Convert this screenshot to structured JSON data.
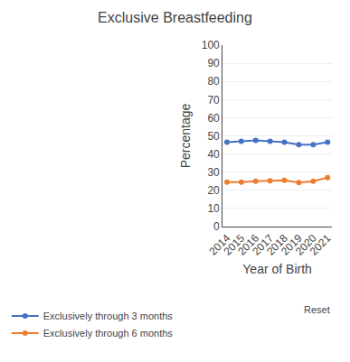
{
  "chart_data": {
    "type": "line",
    "title": "Exclusive Breastfeeding",
    "xlabel": "Year of Birth",
    "ylabel": "Percentage",
    "x": [
      2014,
      2015,
      2016,
      2017,
      2018,
      2019,
      2020,
      2021
    ],
    "series": [
      {
        "name": "Exclusively through 3 months",
        "color": "#4472c4",
        "marker": "circle",
        "values": [
          46.5,
          47.0,
          47.5,
          47.0,
          46.5,
          45.2,
          45.2,
          46.5
        ]
      },
      {
        "name": "Exclusively through 6 months",
        "color": "#ed7d31",
        "marker": "circle",
        "values": [
          24.5,
          24.5,
          25.0,
          25.2,
          25.5,
          24.2,
          25.0,
          27.0
        ]
      }
    ],
    "xlim": [
      2013.7,
      2021.3
    ],
    "xticks": [
      2014,
      2015,
      2016,
      2017,
      2018,
      2019,
      2020,
      2021
    ],
    "ylim": [
      0,
      100
    ],
    "yticks": [
      0,
      10,
      20,
      30,
      40,
      50,
      60,
      70,
      80,
      90,
      100
    ],
    "grid": true,
    "legend": "bottom",
    "annotations": [
      "Reset"
    ]
  }
}
